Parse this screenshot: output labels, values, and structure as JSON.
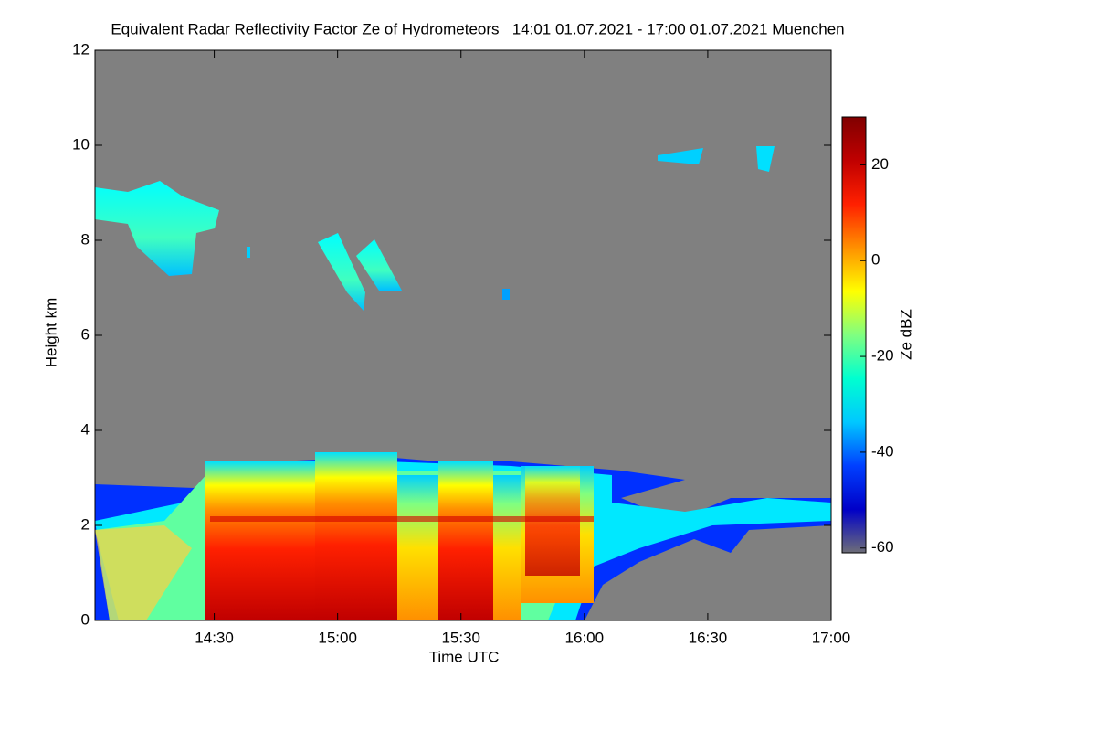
{
  "chart_data": {
    "type": "heatmap",
    "title": "Equivalent Radar Reflectivity Factor Ze of Hydrometeors   14:01 01.07.2021 - 17:00 01.07.2021 Muenchen",
    "x_label": "Time UTC",
    "y_label": "Height km",
    "colorbar_label": "Ze dBZ",
    "xlim": [
      841,
      1020
    ],
    "xticks": [
      {
        "value": 870,
        "label": "14:30"
      },
      {
        "value": 900,
        "label": "15:00"
      },
      {
        "value": 930,
        "label": "15:30"
      },
      {
        "value": 960,
        "label": "16:00"
      },
      {
        "value": 990,
        "label": "16:30"
      },
      {
        "value": 1020,
        "label": "17:00"
      }
    ],
    "ylim": [
      0,
      12
    ],
    "yticks": [
      0,
      2,
      4,
      6,
      8,
      10,
      12
    ],
    "clim": [
      -61,
      30
    ],
    "cticks": [
      -60,
      -40,
      -20,
      0,
      20
    ],
    "colormap": [
      "#6e6e78",
      "#0000c8",
      "#0040ff",
      "#00c8ff",
      "#00ffd0",
      "#80ff80",
      "#ffff00",
      "#ff9000",
      "#ff2000",
      "#c00000",
      "#800000"
    ],
    "background": "#808080"
  }
}
